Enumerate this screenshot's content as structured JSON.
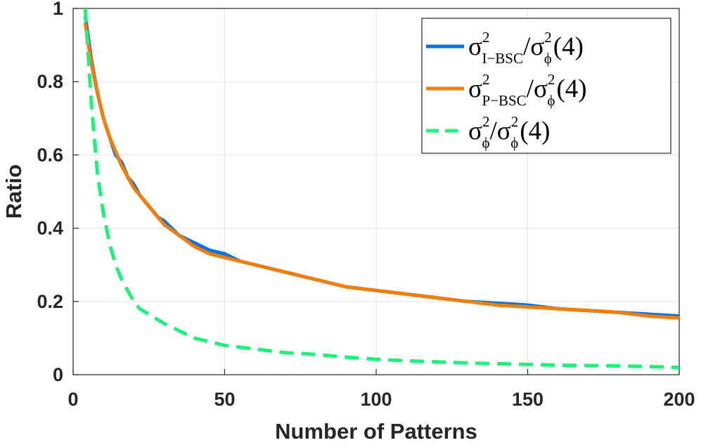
{
  "chart_data": {
    "type": "line",
    "title": "",
    "xlabel": "Number of Patterns",
    "ylabel": "Ratio",
    "xlim": [
      0,
      200
    ],
    "ylim": [
      0,
      1
    ],
    "xticks": [
      0,
      50,
      100,
      150,
      200
    ],
    "yticks": [
      0,
      0.2,
      0.4,
      0.6,
      0.8,
      1
    ],
    "xtick_labels": [
      "0",
      "50",
      "100",
      "150",
      "200"
    ],
    "ytick_labels": [
      "0",
      "0.2",
      "0.4",
      "0.6",
      "0.8",
      "1"
    ],
    "grid": true,
    "legend_position": "top-right",
    "x": [
      4,
      6,
      8,
      10,
      12,
      14,
      16,
      18,
      20,
      22,
      24,
      26,
      28,
      30,
      35,
      40,
      45,
      50,
      55,
      60,
      65,
      70,
      75,
      80,
      90,
      100,
      110,
      120,
      130,
      140,
      150,
      160,
      170,
      180,
      190,
      200
    ],
    "series": [
      {
        "name": "I-BSC",
        "legend": {
          "base": "σ",
          "sup": "2",
          "sub": "I−BSC",
          "rest": "/σ",
          "rest_sup": "2",
          "rest_sub": "ϕ",
          "tail": "(4)"
        },
        "color": "#0072E0",
        "style": "solid",
        "values": [
          0.98,
          0.86,
          0.77,
          0.7,
          0.65,
          0.6,
          0.58,
          0.54,
          0.52,
          0.49,
          0.47,
          0.45,
          0.43,
          0.42,
          0.38,
          0.36,
          0.34,
          0.33,
          0.31,
          0.3,
          0.29,
          0.28,
          0.27,
          0.26,
          0.24,
          0.23,
          0.22,
          0.21,
          0.2,
          0.195,
          0.19,
          0.18,
          0.175,
          0.17,
          0.165,
          0.16
        ]
      },
      {
        "name": "P-BSC",
        "legend": {
          "base": "σ",
          "sup": "2",
          "sub": "P−BSC",
          "rest": "/σ",
          "rest_sup": "2",
          "rest_sub": "ϕ",
          "tail": "(4)"
        },
        "color": "#F07F09",
        "style": "solid",
        "values": [
          0.96,
          0.85,
          0.77,
          0.7,
          0.65,
          0.61,
          0.57,
          0.54,
          0.51,
          0.49,
          0.47,
          0.45,
          0.43,
          0.41,
          0.38,
          0.35,
          0.33,
          0.32,
          0.31,
          0.3,
          0.29,
          0.28,
          0.27,
          0.26,
          0.24,
          0.23,
          0.22,
          0.21,
          0.2,
          0.19,
          0.185,
          0.18,
          0.175,
          0.17,
          0.16,
          0.155
        ]
      },
      {
        "name": "phi",
        "legend": {
          "base": "σ",
          "sup": "2",
          "sub": "ϕ",
          "rest": "/σ",
          "rest_sup": "2",
          "rest_sub": "ϕ",
          "tail": "(4)"
        },
        "color": "#1EF07A",
        "style": "dashed",
        "values": [
          1.0,
          0.74,
          0.55,
          0.44,
          0.36,
          0.3,
          0.26,
          0.23,
          0.2,
          0.18,
          0.17,
          0.16,
          0.15,
          0.14,
          0.12,
          0.1,
          0.09,
          0.08,
          0.075,
          0.07,
          0.065,
          0.06,
          0.058,
          0.055,
          0.048,
          0.042,
          0.038,
          0.035,
          0.032,
          0.03,
          0.028,
          0.026,
          0.025,
          0.024,
          0.022,
          0.02
        ]
      }
    ]
  }
}
